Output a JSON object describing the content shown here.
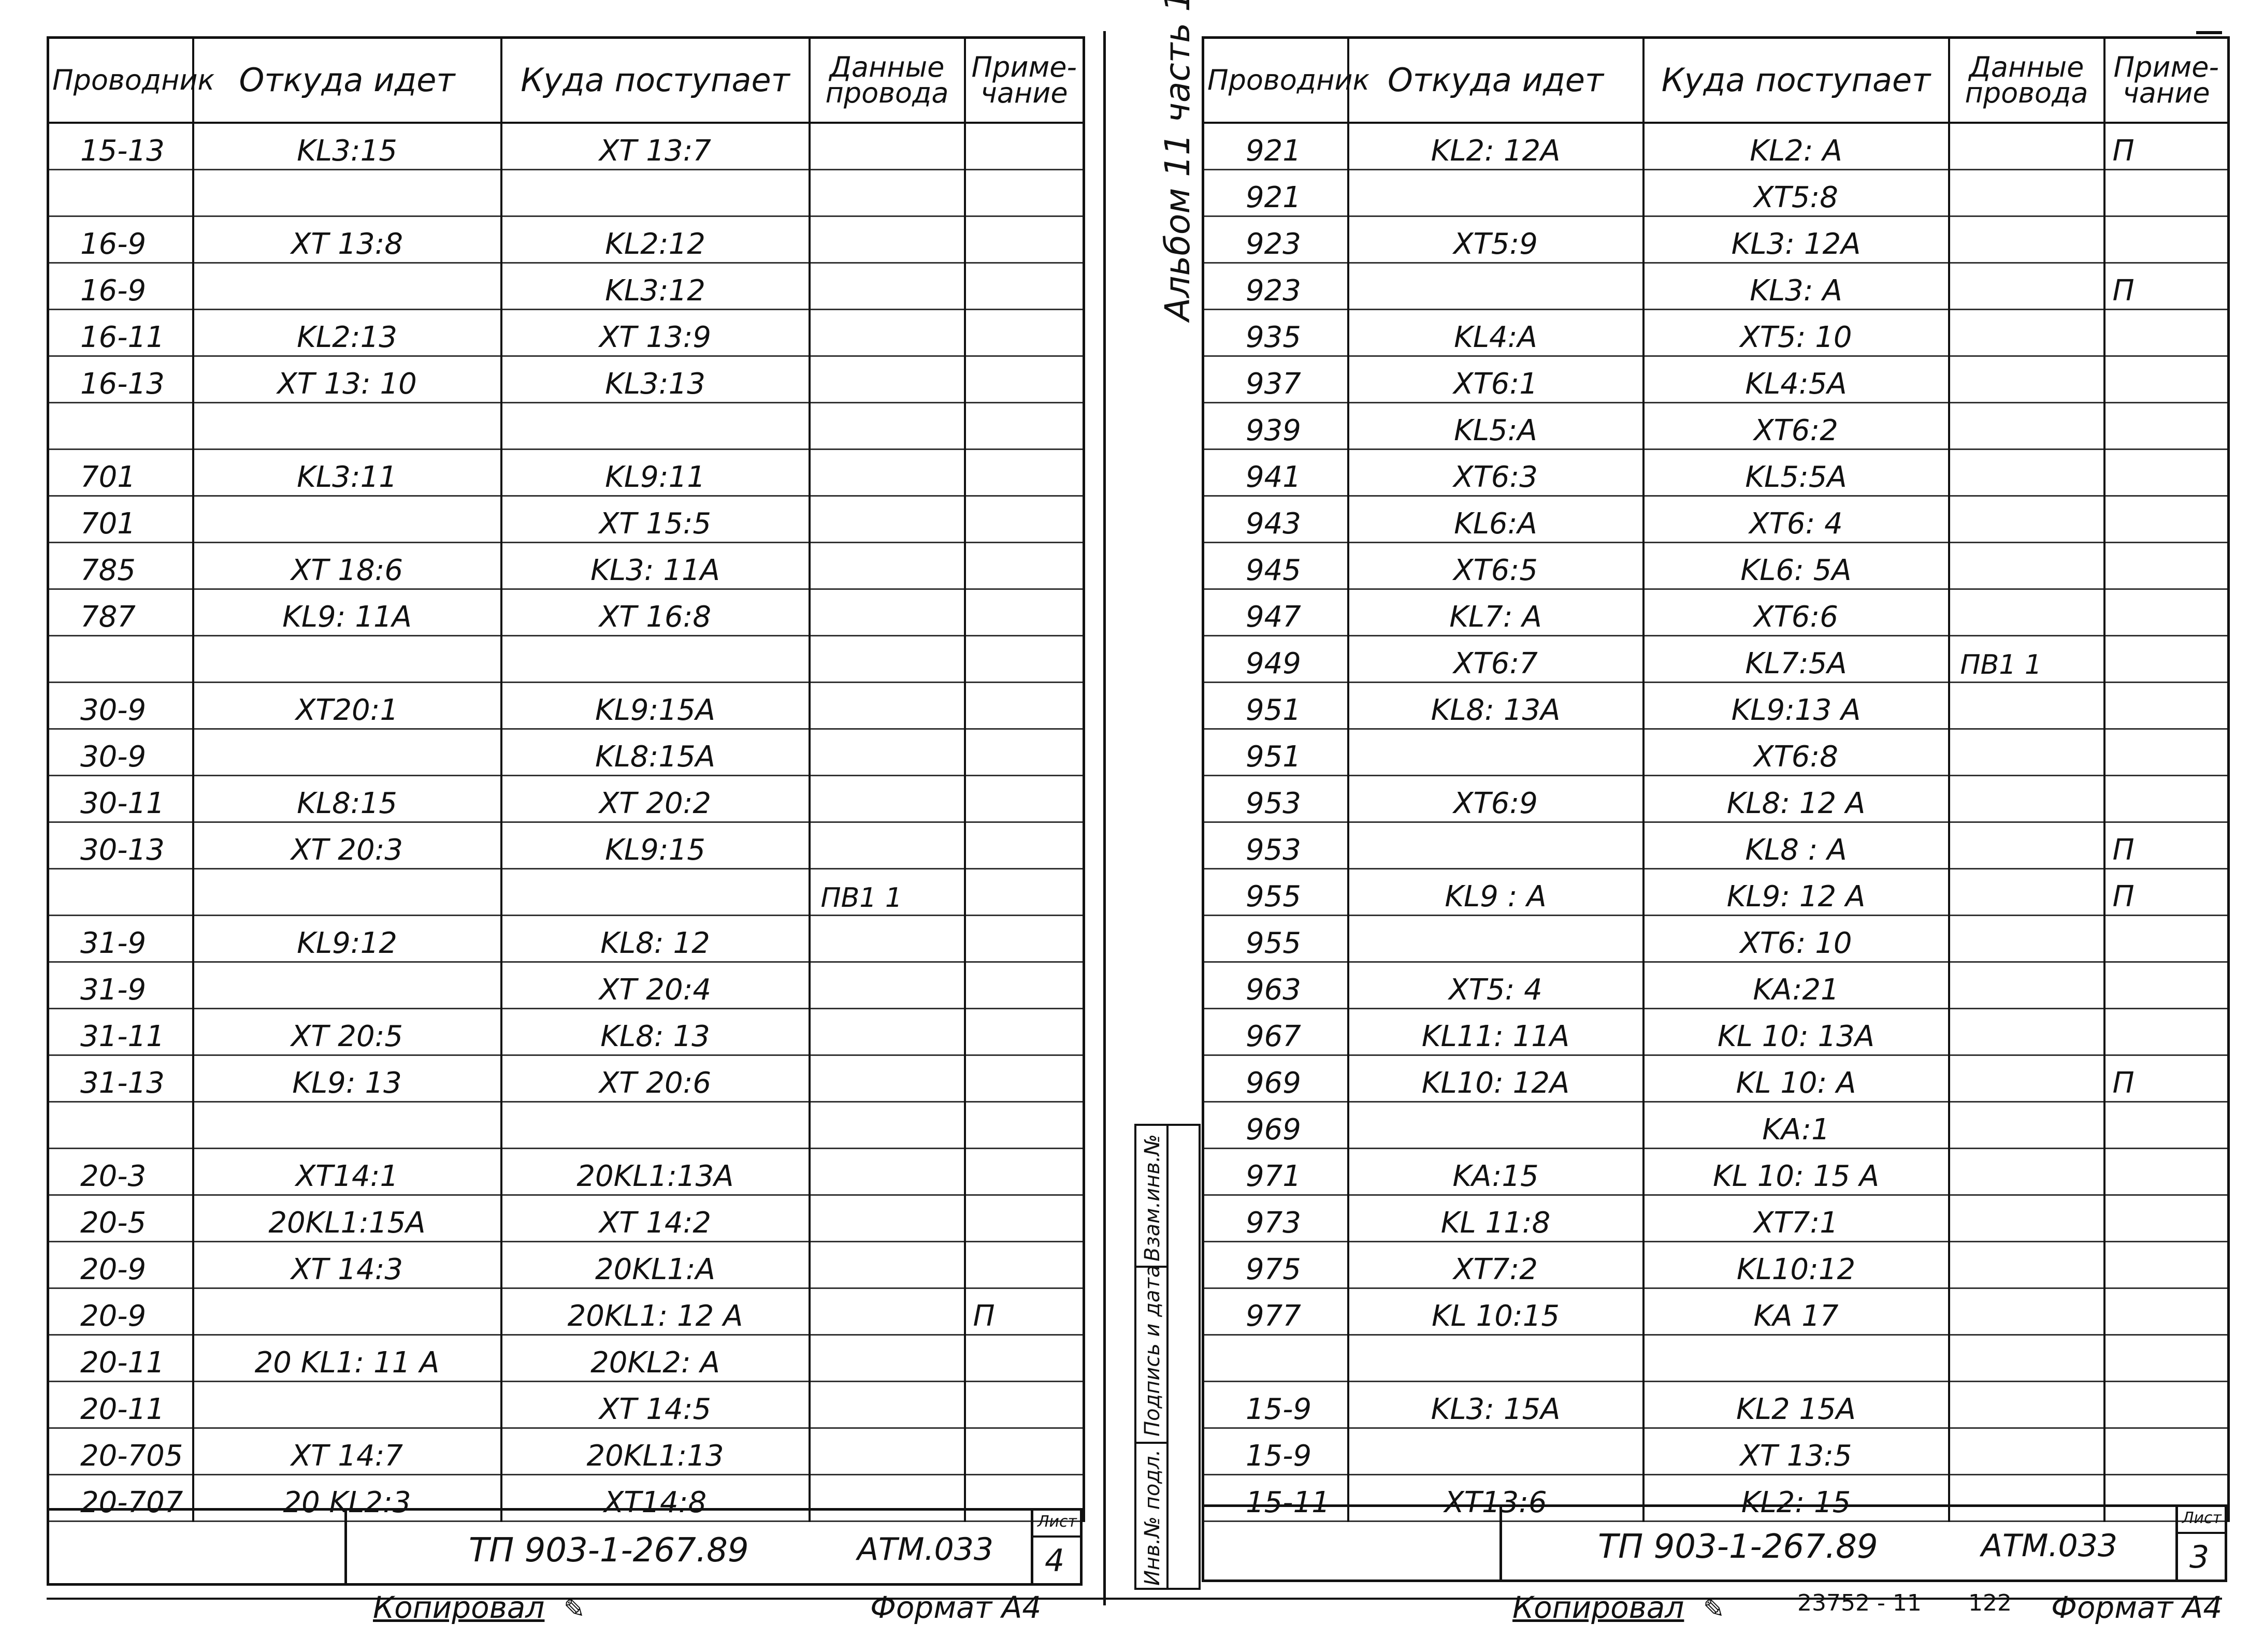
{
  "left_sheet": {
    "headers": [
      "Проводник",
      "Откуда идет",
      "Куда поступает",
      "Данные\nпровода",
      "Приме-\nчание"
    ],
    "rows": [
      {
        "wire": "15-13",
        "from": "KL3:15",
        "to": "XT 13:7",
        "data": "",
        "note": ""
      },
      {
        "wire": "",
        "from": "",
        "to": "",
        "data": "",
        "note": ""
      },
      {
        "wire": "16-9",
        "from": "XT 13:8",
        "to": "KL2:12",
        "data": "",
        "note": ""
      },
      {
        "wire": "16-9",
        "from": "",
        "to": "KL3:12",
        "data": "",
        "note": ""
      },
      {
        "wire": "16-11",
        "from": "KL2:13",
        "to": "XT 13:9",
        "data": "",
        "note": ""
      },
      {
        "wire": "16-13",
        "from": "XT 13: 10",
        "to": "KL3:13",
        "data": "",
        "note": ""
      },
      {
        "wire": "",
        "from": "",
        "to": "",
        "data": "",
        "note": ""
      },
      {
        "wire": "701",
        "from": "KL3:11",
        "to": "KL9:11",
        "data": "",
        "note": ""
      },
      {
        "wire": "701",
        "from": "",
        "to": "XT 15:5",
        "data": "",
        "note": ""
      },
      {
        "wire": "785",
        "from": "XT 18:6",
        "to": "KL3: 11A",
        "data": "",
        "note": ""
      },
      {
        "wire": "787",
        "from": "KL9: 11A",
        "to": "XT 16:8",
        "data": "",
        "note": ""
      },
      {
        "wire": "",
        "from": "",
        "to": "",
        "data": "",
        "note": ""
      },
      {
        "wire": "30-9",
        "from": "XT20:1",
        "to": "KL9:15A",
        "data": "",
        "note": ""
      },
      {
        "wire": "30-9",
        "from": "",
        "to": "KL8:15A",
        "data": "",
        "note": ""
      },
      {
        "wire": "30-11",
        "from": "KL8:15",
        "to": "XT 20:2",
        "data": "",
        "note": ""
      },
      {
        "wire": "30-13",
        "from": "XT 20:3",
        "to": "KL9:15",
        "data": "",
        "note": ""
      },
      {
        "wire": "",
        "from": "",
        "to": "",
        "data": "ПВ1   1",
        "note": ""
      },
      {
        "wire": "31-9",
        "from": "KL9:12",
        "to": "KL8: 12",
        "data": "",
        "note": ""
      },
      {
        "wire": "31-9",
        "from": "",
        "to": "XT 20:4",
        "data": "",
        "note": ""
      },
      {
        "wire": "31-11",
        "from": "XT 20:5",
        "to": "KL8: 13",
        "data": "",
        "note": ""
      },
      {
        "wire": "31-13",
        "from": "KL9: 13",
        "to": "XT 20:6",
        "data": "",
        "note": ""
      },
      {
        "wire": "",
        "from": "",
        "to": "",
        "data": "",
        "note": ""
      },
      {
        "wire": "20-3",
        "from": "XT14:1",
        "to": "20KL1:13A",
        "data": "",
        "note": ""
      },
      {
        "wire": "20-5",
        "from": "20KL1:15A",
        "to": "XT 14:2",
        "data": "",
        "note": ""
      },
      {
        "wire": "20-9",
        "from": "XT 14:3",
        "to": "20KL1:A",
        "data": "",
        "note": ""
      },
      {
        "wire": "20-9",
        "from": "",
        "to": "20KL1: 12 A",
        "data": "",
        "note": "П"
      },
      {
        "wire": "20-11",
        "from": "20 KL1: 11 A",
        "to": "20KL2: A",
        "data": "",
        "note": ""
      },
      {
        "wire": "20-11",
        "from": "",
        "to": "XT 14:5",
        "data": "",
        "note": ""
      },
      {
        "wire": "20-705",
        "from": "XT 14:7",
        "to": "20KL1:13",
        "data": "",
        "note": ""
      },
      {
        "wire": "20-707",
        "from": "20 KL2:3",
        "to": "XT14:8",
        "data": "",
        "note": ""
      }
    ],
    "stamp_code": "ТП 903-1-267.89",
    "stamp_doc": "АТМ.033",
    "sheet_label": "Лист",
    "sheet_number": "4",
    "footer_copied": "Копировал",
    "footer_format": "Формат А4"
  },
  "right_sheet": {
    "album_label": "Альбом 11 часть 1",
    "headers": [
      "Проводник",
      "Откуда идет",
      "Куда поступает",
      "Данные\nпровода",
      "Приме-\nчание"
    ],
    "rows": [
      {
        "wire": "921",
        "from": "KL2: 12A",
        "to": "KL2: A",
        "data": "",
        "note": "П"
      },
      {
        "wire": "921",
        "from": "",
        "to": "XT5:8",
        "data": "",
        "note": ""
      },
      {
        "wire": "923",
        "from": "XT5:9",
        "to": "KL3: 12A",
        "data": "",
        "note": ""
      },
      {
        "wire": "923",
        "from": "",
        "to": "KL3: A",
        "data": "",
        "note": "П"
      },
      {
        "wire": "935",
        "from": "KL4:A",
        "to": "XT5: 10",
        "data": "",
        "note": ""
      },
      {
        "wire": "937",
        "from": "XT6:1",
        "to": "KL4:5A",
        "data": "",
        "note": ""
      },
      {
        "wire": "939",
        "from": "KL5:A",
        "to": "XT6:2",
        "data": "",
        "note": ""
      },
      {
        "wire": "941",
        "from": "XT6:3",
        "to": "KL5:5A",
        "data": "",
        "note": ""
      },
      {
        "wire": "943",
        "from": "KL6:A",
        "to": "XT6: 4",
        "data": "",
        "note": ""
      },
      {
        "wire": "945",
        "from": "XT6:5",
        "to": "KL6: 5A",
        "data": "",
        "note": ""
      },
      {
        "wire": "947",
        "from": "KL7: A",
        "to": "XT6:6",
        "data": "",
        "note": ""
      },
      {
        "wire": "949",
        "from": "XT6:7",
        "to": "KL7:5A",
        "data": "ПВ1   1",
        "note": ""
      },
      {
        "wire": "951",
        "from": "KL8: 13A",
        "to": "KL9:13 A",
        "data": "",
        "note": ""
      },
      {
        "wire": "951",
        "from": "",
        "to": "XT6:8",
        "data": "",
        "note": ""
      },
      {
        "wire": "953",
        "from": "XT6:9",
        "to": "KL8: 12 A",
        "data": "",
        "note": ""
      },
      {
        "wire": "953",
        "from": "",
        "to": "KL8 : A",
        "data": "",
        "note": "П"
      },
      {
        "wire": "955",
        "from": "KL9 : A",
        "to": "KL9: 12 A",
        "data": "",
        "note": "П"
      },
      {
        "wire": "955",
        "from": "",
        "to": "XT6: 10",
        "data": "",
        "note": ""
      },
      {
        "wire": "963",
        "from": "XT5: 4",
        "to": "KA:21",
        "data": "",
        "note": ""
      },
      {
        "wire": "967",
        "from": "KL11: 11A",
        "to": "KL 10: 13A",
        "data": "",
        "note": ""
      },
      {
        "wire": "969",
        "from": "KL10: 12A",
        "to": "KL 10: A",
        "data": "",
        "note": "П"
      },
      {
        "wire": "969",
        "from": "",
        "to": "KA:1",
        "data": "",
        "note": ""
      },
      {
        "wire": "971",
        "from": "KA:15",
        "to": "KL 10: 15 A",
        "data": "",
        "note": ""
      },
      {
        "wire": "973",
        "from": "KL 11:8",
        "to": "XT7:1",
        "data": "",
        "note": ""
      },
      {
        "wire": "975",
        "from": "XT7:2",
        "to": "KL10:12",
        "data": "",
        "note": ""
      },
      {
        "wire": "977",
        "from": "KL 10:15",
        "to": "KA 17",
        "data": "",
        "note": ""
      },
      {
        "wire": "",
        "from": "",
        "to": "",
        "data": "",
        "note": ""
      },
      {
        "wire": "15-9",
        "from": "KL3: 15A",
        "to": "KL2 15A",
        "data": "",
        "note": ""
      },
      {
        "wire": "15-9",
        "from": "",
        "to": "XT 13:5",
        "data": "",
        "note": ""
      },
      {
        "wire": "15-11",
        "from": "XT13:6",
        "to": "KL2: 15",
        "data": "",
        "note": ""
      }
    ],
    "side_stamp": [
      "Инв.№ подл.",
      "Подпись и дата",
      "Взам.инв.№"
    ],
    "stamp_code": "ТП 903-1-267.89",
    "stamp_doc": "АТМ.033",
    "sheet_label": "Лист",
    "sheet_number": "3",
    "footer_copied": "Копировал",
    "footer_order": "23752 - 11",
    "footer_page": "122",
    "footer_format": "Формат А4"
  }
}
